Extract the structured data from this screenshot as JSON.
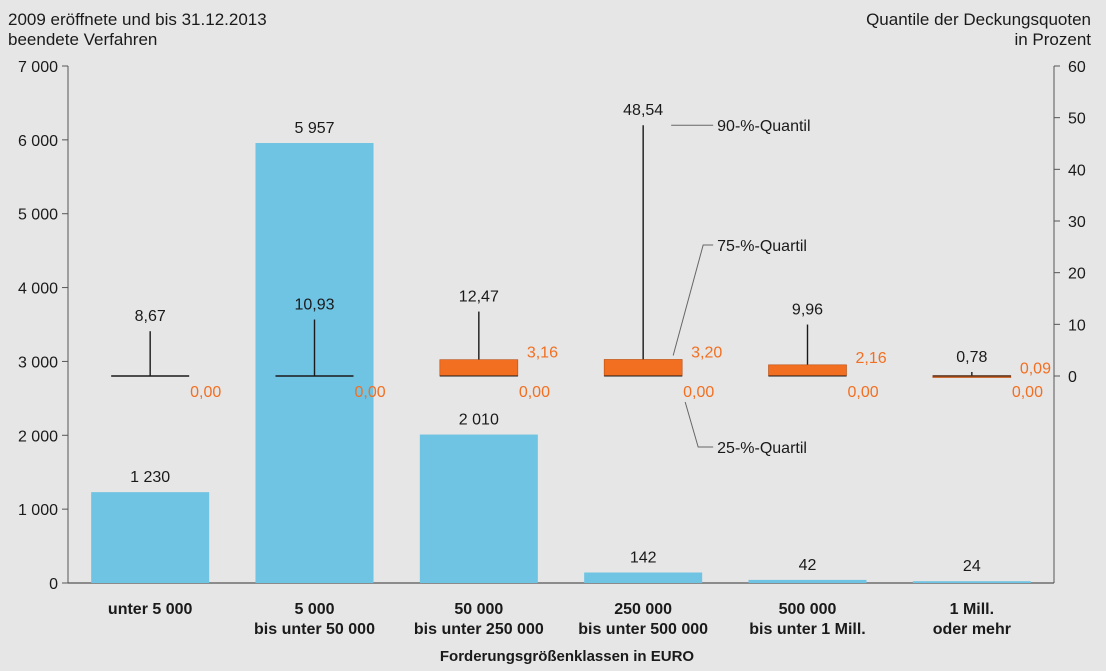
{
  "header": {
    "left_line1": "2009 eröffnete und bis 31.12.2013",
    "left_line2": "beendete Verfahren",
    "right_line1": "Quantile der Deckungsquoten",
    "right_line2": "in Prozent"
  },
  "chart_data": {
    "type": "bar",
    "xlabel": "Forderungsgrößenklassen in EURO",
    "categories": [
      [
        "unter 5 000"
      ],
      [
        "5 000",
        "bis unter 50 000"
      ],
      [
        "50 000",
        "bis unter 250 000"
      ],
      [
        "250 000",
        "bis unter 500 000"
      ],
      [
        "500 000",
        "bis unter 1 Mill."
      ],
      [
        "1 Mill.",
        "oder mehr"
      ]
    ],
    "left_axis": {
      "ylim": [
        0,
        7000
      ],
      "ticks": [
        "0",
        "1 000",
        "2 000",
        "3 000",
        "4 000",
        "5 000",
        "6 000",
        "7 000"
      ]
    },
    "right_axis": {
      "ylim": [
        0,
        60
      ],
      "ticks": [
        "0",
        "10",
        "20",
        "30",
        "40",
        "50",
        "60"
      ]
    },
    "bars": {
      "values": [
        1230,
        5957,
        2010,
        142,
        42,
        24
      ],
      "labels": [
        "1 230",
        "5 957",
        "2 010",
        "142",
        "42",
        "24"
      ],
      "color": "#6fc3e3"
    },
    "quantiles": {
      "q90": [
        8.67,
        10.93,
        12.47,
        48.54,
        9.96,
        0.78
      ],
      "q90_labels": [
        "8,67",
        "10,93",
        "12,47",
        "48,54",
        "9,96",
        "0,78"
      ],
      "q75": [
        0,
        0,
        3.16,
        3.2,
        2.16,
        0.09
      ],
      "q75_labels": [
        "",
        "",
        "3,16",
        "3,20",
        "2,16",
        "0,09"
      ],
      "q25": [
        0,
        0,
        0,
        0,
        0,
        0
      ],
      "q25_labels": [
        "0,00",
        "0,00",
        "0,00",
        "0,00",
        "0,00",
        "0,00"
      ],
      "box_color": "#f26f21",
      "label_color": "#f26f21"
    },
    "annotations": {
      "q90_label": "90-%-Quantil",
      "q75_label": "75-%-Quartil",
      "q25_label": "25-%-Quartil"
    },
    "grid": false
  }
}
